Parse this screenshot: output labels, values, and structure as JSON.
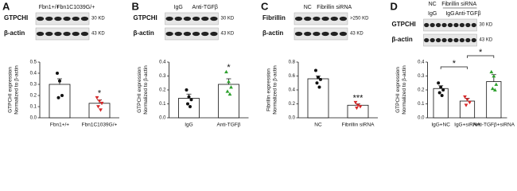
{
  "chart_data": [
    {
      "type": "bar",
      "panel": "A",
      "blot": {
        "lanes": [
          "Fbn1+/+",
          "Fbn1C1039G/+"
        ],
        "rows": [
          "GTPCHI",
          "β-actin"
        ],
        "sizes": [
          "30 KD",
          "43 KD"
        ]
      },
      "ylabel": [
        "GTPCHI expression",
        "Normalized to β-actin"
      ],
      "categories": [
        "Fbn1+/+",
        "Fbn1C1039G/+"
      ],
      "values": [
        0.3,
        0.13
      ],
      "errors": [
        0.05,
        0.03
      ],
      "points": [
        [
          0.4,
          0.33,
          0.2,
          0.18
        ],
        [
          0.18,
          0.15,
          0.13,
          0.1,
          0.07
        ]
      ],
      "point_colors": [
        "#111111",
        "#d62728"
      ],
      "point_shapes": [
        "circle",
        "triangle-down"
      ],
      "ylim": [
        0,
        0.5
      ],
      "yticks": [
        {
          "value": 0,
          "label": "0.0"
        },
        0.1,
        0.2,
        0.3,
        0.4,
        0.5
      ],
      "annotations": [
        {
          "text": "*",
          "category": 1
        }
      ]
    },
    {
      "type": "bar",
      "panel": "B",
      "blot": {
        "lanes": [
          "IgG",
          "Anti-TGFβ"
        ],
        "rows": [
          "GTPCHI",
          "β-actin"
        ],
        "sizes": [
          "30 KD",
          "43 KD"
        ]
      },
      "ylabel": [
        "GTPCHI expression",
        "Normalized to β-actin"
      ],
      "categories": [
        "IgG",
        "Anti-TGFβ"
      ],
      "values": [
        0.14,
        0.24
      ],
      "errors": [
        0.03,
        0.04
      ],
      "points": [
        [
          0.2,
          0.15,
          0.13,
          0.1,
          0.08
        ],
        [
          0.33,
          0.26,
          0.22,
          0.19,
          0.17
        ]
      ],
      "point_colors": [
        "#111111",
        "#2ca02c"
      ],
      "point_shapes": [
        "circle",
        "triangle-up"
      ],
      "ylim": [
        0,
        0.4
      ],
      "yticks": [
        {
          "value": 0,
          "label": "0.0"
        },
        0.1,
        0.2,
        0.3,
        0.4
      ],
      "annotations": [
        {
          "text": "*",
          "category": 1
        }
      ]
    },
    {
      "type": "bar",
      "panel": "C",
      "blot": {
        "lanes": [
          "NC",
          "Fibrillin siRNA"
        ],
        "rows": [
          "Fibrillin",
          "β-actin"
        ],
        "sizes": [
          ">250 KD",
          "43 KD"
        ]
      },
      "ylabel": [
        "Fibrillin expression",
        "Normalized to β-actin"
      ],
      "categories": [
        "NC",
        "Fibrillin siRNA"
      ],
      "values": [
        0.56,
        0.18
      ],
      "errors": [
        0.04,
        0.02
      ],
      "points": [
        [
          0.68,
          0.58,
          0.55,
          0.5,
          0.44
        ],
        [
          0.22,
          0.18,
          0.16,
          0.14
        ]
      ],
      "point_colors": [
        "#111111",
        "#d62728"
      ],
      "point_shapes": [
        "circle",
        "triangle-down"
      ],
      "ylim": [
        0,
        0.8
      ],
      "yticks": [
        {
          "value": 0,
          "label": "0.0"
        },
        0.2,
        0.4,
        0.6,
        0.8
      ],
      "annotations": [
        {
          "text": "***",
          "category": 1
        }
      ]
    },
    {
      "type": "bar",
      "panel": "D",
      "blot": {
        "groups": [
          "NC",
          "Fibrillin siRNA"
        ],
        "lanes": [
          "IgG",
          "IgG",
          "Anti-TGFβ"
        ],
        "rows": [
          "GTPCHI",
          "β-actin"
        ],
        "sizes": [
          "30 KD",
          "43 KD"
        ]
      },
      "ylabel": [
        "GTPCHI expression",
        "Normalized to β-actin"
      ],
      "categories": [
        "IgG+NC",
        "IgG+siRNA",
        "Anti-TGFβ+siRNA"
      ],
      "values": [
        0.21,
        0.12,
        0.26
      ],
      "errors": [
        0.02,
        0.02,
        0.05
      ],
      "points": [
        [
          0.25,
          0.22,
          0.2,
          0.18,
          0.16
        ],
        [
          0.15,
          0.13,
          0.11,
          0.09
        ],
        [
          0.33,
          0.3,
          0.24,
          0.21,
          0.2
        ]
      ],
      "point_colors": [
        "#111111",
        "#d62728",
        "#2ca02c"
      ],
      "point_shapes": [
        "circle",
        "triangle-down",
        "triangle-up"
      ],
      "ylim": [
        0,
        0.4
      ],
      "yticks": [
        {
          "value": 0,
          "label": "0.0"
        },
        0.1,
        0.2,
        0.3,
        0.4
      ],
      "annotations": [
        {
          "text": "*",
          "from": 0,
          "to": 1
        },
        {
          "text": "*",
          "from": 1,
          "to": 2
        }
      ]
    }
  ]
}
